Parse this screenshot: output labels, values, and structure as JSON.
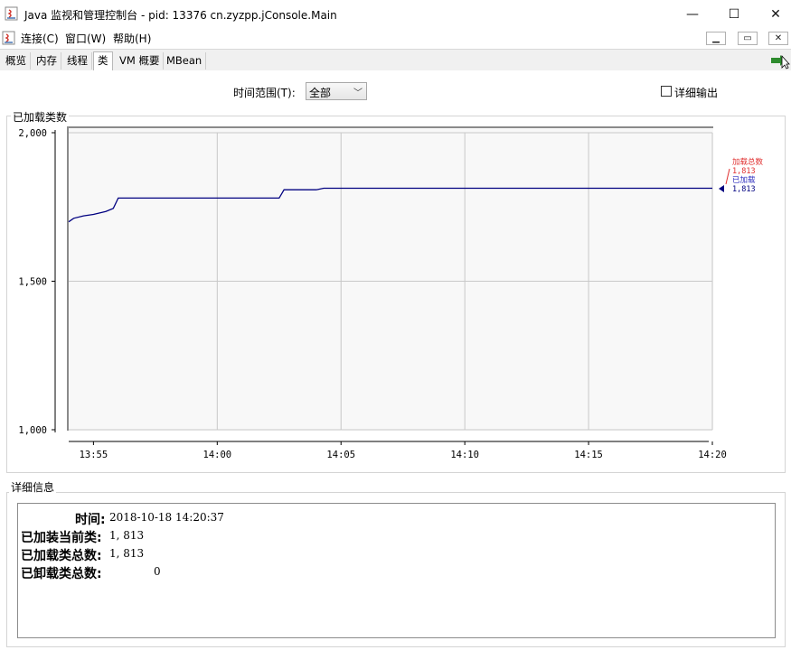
{
  "window": {
    "title": "Java 监视和管理控制台 - pid: 13376 cn.zyzpp.jConsole.Main",
    "minimize_glyph": "—",
    "maximize_glyph": "☐",
    "close_glyph": "✕"
  },
  "menu": {
    "items": [
      "连接(C)",
      "窗口(W)",
      "帮助(H)"
    ],
    "mdi_buttons": [
      "▁",
      "▭",
      "✕"
    ]
  },
  "tabs": [
    {
      "label": "概览",
      "active": false
    },
    {
      "label": "内存",
      "active": false
    },
    {
      "label": "线程",
      "active": false
    },
    {
      "label": "类",
      "active": true
    },
    {
      "label": "VM 概要",
      "active": false
    },
    {
      "label": "MBean",
      "active": false
    }
  ],
  "toolbar": {
    "time_range_label": "时间范围(T):",
    "time_range_value": "全部",
    "detail_output_label": "详细输出",
    "detail_output_checked": false
  },
  "chart_panel": {
    "title": "已加载类数"
  },
  "chart_data": {
    "type": "line",
    "ylim": [
      1000,
      2000
    ],
    "yticks": [
      {
        "value": 1000,
        "label": "1,000"
      },
      {
        "value": 1500,
        "label": "1,500"
      },
      {
        "value": 2000,
        "label": "2,000"
      }
    ],
    "xlim": [
      "13:54",
      "14:20"
    ],
    "xticks": [
      "13:55",
      "14:00",
      "14:05",
      "14:10",
      "14:15",
      "14:20"
    ],
    "series": [
      {
        "name": "已加载",
        "color": "#000080",
        "x": [
          "13:54",
          "13:54.2",
          "13:54.6",
          "13:55.0",
          "13:55.5",
          "13:55.8",
          "13:56.0",
          "14:02.5",
          "14:02.7",
          "14:04.0",
          "14:04.3",
          "14:20"
        ],
        "values": [
          1700,
          1712,
          1720,
          1725,
          1735,
          1745,
          1780,
          1780,
          1808,
          1808,
          1813,
          1813
        ]
      }
    ],
    "legend": [
      {
        "label": "加载总数",
        "value": "1,813",
        "color": "#e03030"
      },
      {
        "label": "已加载",
        "value": "1,813",
        "color": "#3030c0"
      }
    ]
  },
  "details_panel": {
    "title": "详细信息",
    "rows": [
      {
        "key": "时间:",
        "value": "2018-10-18 14:20:37"
      },
      {
        "key": "已加装当前类:",
        "value": "1, 813"
      },
      {
        "key": "已加载类总数:",
        "value": "1, 813"
      },
      {
        "key": "已卸载类总数:",
        "value": "0"
      }
    ]
  }
}
